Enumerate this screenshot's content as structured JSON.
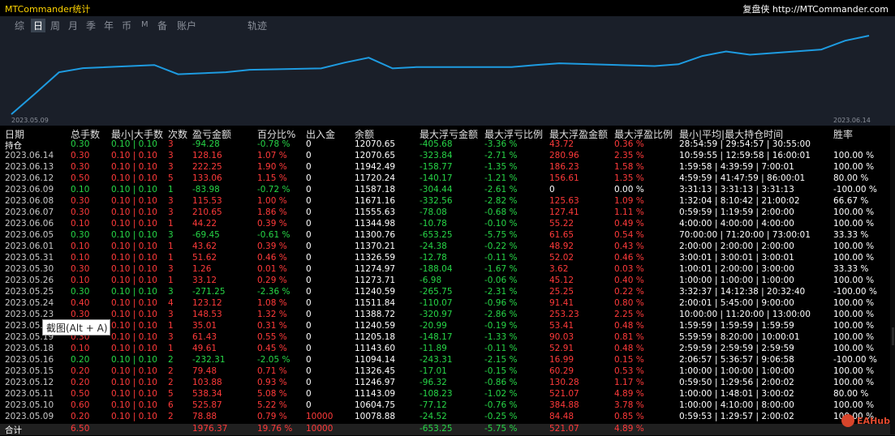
{
  "app": {
    "title": "MTCommander统计",
    "brand": "复盘侠 http://MTCommander.com"
  },
  "tabs": [
    {
      "label": "综",
      "active": false
    },
    {
      "label": "日",
      "active": true
    },
    {
      "label": "周",
      "active": false
    },
    {
      "label": "月",
      "active": false
    },
    {
      "label": "季",
      "active": false
    },
    {
      "label": "年",
      "active": false
    },
    {
      "label": "币",
      "active": false
    },
    {
      "label": "M",
      "active": false
    },
    {
      "label": "备",
      "active": false
    },
    {
      "label": "账户",
      "active": false
    },
    {
      "label": "轨迹",
      "active": false
    }
  ],
  "chart": {
    "start_date": "2023.05.09",
    "end_date": "2023.06.14",
    "line_color": "#1e9be0",
    "dates": [
      "2023.05.09",
      "2023.05.10",
      "2023.05.11",
      "2023.05.12",
      "2023.05.15",
      "2023.05.16",
      "2023.05.18",
      "2023.05.19",
      "2023.05.22",
      "2023.05.23",
      "2023.05.24",
      "2023.05.25",
      "2023.05.26",
      "2023.05.30",
      "2023.05.31",
      "2023.06.01",
      "2023.06.05",
      "2023.06.06",
      "2023.06.07",
      "2023.06.08",
      "2023.06.09",
      "2023.06.12",
      "2023.06.13",
      "2023.06.14"
    ],
    "values": [
      10078.88,
      10604.75,
      11143.09,
      11246.97,
      11326.45,
      11094.14,
      11143.6,
      11205.18,
      11240.59,
      11388.72,
      11511.84,
      11240.59,
      11273.71,
      11274.97,
      11326.59,
      11370.21,
      11300.76,
      11344.98,
      11555.63,
      11671.16,
      11587.18,
      11720.24,
      11942.49,
      12070.65
    ]
  },
  "table": {
    "headers": [
      "日期",
      "总手数",
      "最小|大手数",
      "次数",
      "盈亏金额",
      "百分比%",
      "出入金",
      "余额",
      "最大浮亏金额",
      "最大浮亏比例",
      "最大浮盈金额",
      "最大浮盈比例",
      "最小|平均|最大持仓时间",
      "胜率"
    ],
    "rows": [
      {
        "c": [
          "持仓",
          "0.30",
          "0.10 | 0.10",
          "3",
          "-94.28",
          "-0.78 %",
          "0",
          "12070.65",
          "-405.68",
          "-3.36 %",
          "43.72",
          "0.36 %",
          "28:54:59 | 29:54:57 | 30:55:00",
          ""
        ],
        "col": [
          "w",
          "g",
          "g",
          "r",
          "g",
          "g",
          "w",
          "w",
          "g",
          "g",
          "r",
          "r",
          "w",
          "w"
        ]
      },
      {
        "c": [
          "2023.06.14",
          "0.30",
          "0.10 | 0.10",
          "3",
          "128.16",
          "1.07 %",
          "0",
          "12070.65",
          "-323.84",
          "-2.71 %",
          "280.96",
          "2.35 %",
          "10:59:55 | 12:59:58 | 16:00:01",
          "100.00 %"
        ],
        "col": [
          "n",
          "r",
          "r",
          "r",
          "r",
          "r",
          "w",
          "w",
          "g",
          "g",
          "r",
          "r",
          "w",
          "w"
        ]
      },
      {
        "c": [
          "2023.06.13",
          "0.30",
          "0.10 | 0.10",
          "3",
          "222.25",
          "1.90 %",
          "0",
          "11942.49",
          "-158.77",
          "-1.35 %",
          "186.23",
          "1.58 %",
          "1:59:58 | 4:39:59 | 7:00:01",
          "100.00 %"
        ],
        "col": [
          "n",
          "r",
          "r",
          "r",
          "r",
          "r",
          "w",
          "w",
          "g",
          "g",
          "r",
          "r",
          "w",
          "w"
        ]
      },
      {
        "c": [
          "2023.06.12",
          "0.50",
          "0.10 | 0.10",
          "5",
          "133.06",
          "1.15 %",
          "0",
          "11720.24",
          "-140.17",
          "-1.21 %",
          "156.61",
          "1.35 %",
          "4:59:59 | 41:47:59 | 86:00:01",
          "80.00 %"
        ],
        "col": [
          "n",
          "r",
          "r",
          "r",
          "r",
          "r",
          "w",
          "w",
          "g",
          "g",
          "r",
          "r",
          "w",
          "w"
        ]
      },
      {
        "c": [
          "2023.06.09",
          "0.10",
          "0.10 | 0.10",
          "1",
          "-83.98",
          "-0.72 %",
          "0",
          "11587.18",
          "-304.44",
          "-2.61 %",
          "0",
          "0.00 %",
          "3:31:13 | 3:31:13 | 3:31:13",
          "-100.00 %"
        ],
        "col": [
          "n",
          "g",
          "g",
          "g",
          "g",
          "g",
          "w",
          "w",
          "g",
          "g",
          "w",
          "w",
          "w",
          "w"
        ]
      },
      {
        "c": [
          "2023.06.08",
          "0.30",
          "0.10 | 0.10",
          "3",
          "115.53",
          "1.00 %",
          "0",
          "11671.16",
          "-332.56",
          "-2.82 %",
          "125.63",
          "1.09 %",
          "1:32:04 | 8:10:42 | 21:00:02",
          "66.67 %"
        ],
        "col": [
          "n",
          "r",
          "r",
          "r",
          "r",
          "r",
          "w",
          "w",
          "g",
          "g",
          "r",
          "r",
          "w",
          "w"
        ]
      },
      {
        "c": [
          "2023.06.07",
          "0.30",
          "0.10 | 0.10",
          "3",
          "210.65",
          "1.86 %",
          "0",
          "11555.63",
          "-78.08",
          "-0.68 %",
          "127.41",
          "1.11 %",
          "0:59:59 | 1:19:59 | 2:00:00",
          "100.00 %"
        ],
        "col": [
          "n",
          "r",
          "r",
          "r",
          "r",
          "r",
          "w",
          "w",
          "g",
          "g",
          "r",
          "r",
          "w",
          "w"
        ]
      },
      {
        "c": [
          "2023.06.06",
          "0.10",
          "0.10 | 0.10",
          "1",
          "44.22",
          "0.39 %",
          "0",
          "11344.98",
          "-10.78",
          "-0.10 %",
          "55.22",
          "0.49 %",
          "4:00:00 | 4:00:00 | 4:00:00",
          "100.00 %"
        ],
        "col": [
          "n",
          "r",
          "r",
          "r",
          "r",
          "r",
          "w",
          "w",
          "g",
          "g",
          "r",
          "r",
          "w",
          "w"
        ]
      },
      {
        "c": [
          "2023.06.05",
          "0.30",
          "0.10 | 0.10",
          "3",
          "-69.45",
          "-0.61 %",
          "0",
          "11300.76",
          "-653.25",
          "-5.75 %",
          "61.65",
          "0.54 %",
          "70:00:00 | 71:20:00 | 73:00:01",
          "33.33 %"
        ],
        "col": [
          "n",
          "g",
          "g",
          "g",
          "g",
          "g",
          "w",
          "w",
          "g",
          "g",
          "r",
          "r",
          "w",
          "w"
        ]
      },
      {
        "c": [
          "2023.06.01",
          "0.10",
          "0.10 | 0.10",
          "1",
          "43.62",
          "0.39 %",
          "0",
          "11370.21",
          "-24.38",
          "-0.22 %",
          "48.92",
          "0.43 %",
          "2:00:00 | 2:00:00 | 2:00:00",
          "100.00 %"
        ],
        "col": [
          "n",
          "r",
          "r",
          "r",
          "r",
          "r",
          "w",
          "w",
          "g",
          "g",
          "r",
          "r",
          "w",
          "w"
        ]
      },
      {
        "c": [
          "2023.05.31",
          "0.10",
          "0.10 | 0.10",
          "1",
          "51.62",
          "0.46 %",
          "0",
          "11326.59",
          "-12.78",
          "-0.11 %",
          "52.02",
          "0.46 %",
          "3:00:01 | 3:00:01 | 3:00:01",
          "100.00 %"
        ],
        "col": [
          "n",
          "r",
          "r",
          "r",
          "r",
          "r",
          "w",
          "w",
          "g",
          "g",
          "r",
          "r",
          "w",
          "w"
        ]
      },
      {
        "c": [
          "2023.05.30",
          "0.30",
          "0.10 | 0.10",
          "3",
          "1.26",
          "0.01 %",
          "0",
          "11274.97",
          "-188.04",
          "-1.67 %",
          "3.62",
          "0.03 %",
          "1:00:01 | 2:00:00 | 3:00:00",
          "33.33 %"
        ],
        "col": [
          "n",
          "r",
          "r",
          "r",
          "r",
          "r",
          "w",
          "w",
          "g",
          "g",
          "r",
          "r",
          "w",
          "w"
        ]
      },
      {
        "c": [
          "2023.05.26",
          "0.10",
          "0.10 | 0.10",
          "1",
          "33.12",
          "0.29 %",
          "0",
          "11273.71",
          "-6.98",
          "-0.06 %",
          "45.12",
          "0.40 %",
          "1:00:00 | 1:00:00 | 1:00:00",
          "100.00 %"
        ],
        "col": [
          "n",
          "r",
          "r",
          "r",
          "r",
          "r",
          "w",
          "w",
          "g",
          "g",
          "r",
          "r",
          "w",
          "w"
        ]
      },
      {
        "c": [
          "2023.05.25",
          "0.30",
          "0.10 | 0.10",
          "3",
          "-271.25",
          "-2.36 %",
          "0",
          "11240.59",
          "-265.75",
          "-2.31 %",
          "25.25",
          "0.22 %",
          "3:32:37 | 14:12:38 | 20:32:40",
          "-100.00 %"
        ],
        "col": [
          "n",
          "g",
          "g",
          "g",
          "g",
          "g",
          "w",
          "w",
          "g",
          "g",
          "r",
          "r",
          "w",
          "w"
        ]
      },
      {
        "c": [
          "2023.05.24",
          "0.40",
          "0.10 | 0.10",
          "4",
          "123.12",
          "1.08 %",
          "0",
          "11511.84",
          "-110.07",
          "-0.96 %",
          "91.41",
          "0.80 %",
          "2:00:01 | 5:45:00 | 9:00:00",
          "100.00 %"
        ],
        "col": [
          "n",
          "r",
          "r",
          "r",
          "r",
          "r",
          "w",
          "w",
          "g",
          "g",
          "r",
          "r",
          "w",
          "w"
        ]
      },
      {
        "c": [
          "2023.05.23",
          "0.30",
          "0.10 | 0.10",
          "3",
          "148.53",
          "1.32 %",
          "0",
          "11388.72",
          "-320.97",
          "-2.86 %",
          "253.23",
          "2.25 %",
          "10:00:00 | 11:20:00 | 13:00:00",
          "100.00 %"
        ],
        "col": [
          "n",
          "r",
          "r",
          "r",
          "r",
          "r",
          "w",
          "w",
          "g",
          "g",
          "r",
          "r",
          "w",
          "w"
        ]
      },
      {
        "c": [
          "2023.05.22",
          "0.10",
          "0.10 | 0.10",
          "1",
          "35.01",
          "0.31 %",
          "0",
          "11240.59",
          "-20.99",
          "-0.19 %",
          "53.41",
          "0.48 %",
          "1:59:59 | 1:59:59 | 1:59:59",
          "100.00 %"
        ],
        "col": [
          "n",
          "r",
          "r",
          "r",
          "r",
          "r",
          "w",
          "w",
          "g",
          "g",
          "r",
          "r",
          "w",
          "w"
        ]
      },
      {
        "c": [
          "2023.05.19",
          "0.30",
          "0.10 | 0.10",
          "3",
          "61.43",
          "0.55 %",
          "0",
          "11205.18",
          "-148.17",
          "-1.33 %",
          "90.03",
          "0.81 %",
          "5:59:59 | 8:20:00 | 10:00:01",
          "100.00 %"
        ],
        "col": [
          "n",
          "r",
          "r",
          "r",
          "r",
          "r",
          "w",
          "w",
          "g",
          "g",
          "r",
          "r",
          "w",
          "w"
        ]
      },
      {
        "c": [
          "2023.05.18",
          "0.10",
          "0.10 | 0.10",
          "1",
          "49.61",
          "0.45 %",
          "0",
          "11143.60",
          "-11.89",
          "-0.11 %",
          "52.91",
          "0.48 %",
          "2:59:59 | 2:59:59 | 2:59:59",
          "100.00 %"
        ],
        "col": [
          "n",
          "r",
          "r",
          "r",
          "r",
          "r",
          "w",
          "w",
          "g",
          "g",
          "r",
          "r",
          "w",
          "w"
        ]
      },
      {
        "c": [
          "2023.05.16",
          "0.20",
          "0.10 | 0.10",
          "2",
          "-232.31",
          "-2.05 %",
          "0",
          "11094.14",
          "-243.31",
          "-2.15 %",
          "16.99",
          "0.15 %",
          "2:06:57 | 5:36:57 | 9:06:58",
          "-100.00 %"
        ],
        "col": [
          "n",
          "g",
          "g",
          "g",
          "g",
          "g",
          "w",
          "w",
          "g",
          "g",
          "r",
          "r",
          "w",
          "w"
        ]
      },
      {
        "c": [
          "2023.05.15",
          "0.20",
          "0.10 | 0.10",
          "2",
          "79.48",
          "0.71 %",
          "0",
          "11326.45",
          "-17.01",
          "-0.15 %",
          "60.29",
          "0.53 %",
          "1:00:00 | 1:00:00 | 1:00:00",
          "100.00 %"
        ],
        "col": [
          "n",
          "r",
          "r",
          "r",
          "r",
          "r",
          "w",
          "w",
          "g",
          "g",
          "r",
          "r",
          "w",
          "w"
        ]
      },
      {
        "c": [
          "2023.05.12",
          "0.20",
          "0.10 | 0.10",
          "2",
          "103.88",
          "0.93 %",
          "0",
          "11246.97",
          "-96.32",
          "-0.86 %",
          "130.28",
          "1.17 %",
          "0:59:50 | 1:29:56 | 2:00:02",
          "100.00 %"
        ],
        "col": [
          "n",
          "r",
          "r",
          "r",
          "r",
          "r",
          "w",
          "w",
          "g",
          "g",
          "r",
          "r",
          "w",
          "w"
        ]
      },
      {
        "c": [
          "2023.05.11",
          "0.50",
          "0.10 | 0.10",
          "5",
          "538.34",
          "5.08 %",
          "0",
          "11143.09",
          "-108.23",
          "-1.02 %",
          "521.07",
          "4.89 %",
          "1:00:00 | 1:48:01 | 3:00:02",
          "80.00 %"
        ],
        "col": [
          "n",
          "r",
          "r",
          "r",
          "r",
          "r",
          "w",
          "w",
          "g",
          "g",
          "r",
          "r",
          "w",
          "w"
        ]
      },
      {
        "c": [
          "2023.05.10",
          "0.60",
          "0.10 | 0.10",
          "6",
          "525.87",
          "5.22 %",
          "0",
          "10604.75",
          "-77.12",
          "-0.76 %",
          "384.88",
          "3.78 %",
          "1:00:00 | 4:10:00 | 8:00:00",
          "100.00 %"
        ],
        "col": [
          "n",
          "r",
          "r",
          "r",
          "r",
          "r",
          "w",
          "w",
          "g",
          "g",
          "r",
          "r",
          "w",
          "w"
        ]
      },
      {
        "c": [
          "2023.05.09",
          "0.20",
          "0.10 | 0.10",
          "2",
          "78.88",
          "0.79 %",
          "10000",
          "10078.88",
          "-24.52",
          "-0.25 %",
          "84.48",
          "0.85 %",
          "0:59:53 | 1:29:57 | 2:00:02",
          "100.00 %"
        ],
        "col": [
          "n",
          "r",
          "r",
          "r",
          "r",
          "r",
          "r",
          "w",
          "g",
          "g",
          "r",
          "r",
          "w",
          "w"
        ]
      }
    ],
    "total": {
      "c": [
        "合计",
        "6.50",
        "",
        "",
        "1976.37",
        "19.76 %",
        "10000",
        "",
        "-653.25",
        "-5.75 %",
        "521.07",
        "4.89 %",
        "",
        ""
      ],
      "col": [
        "w",
        "r",
        "r",
        "r",
        "r",
        "r",
        "r",
        "w",
        "g",
        "g",
        "r",
        "r",
        "w",
        "w"
      ]
    }
  },
  "tooltip": {
    "text": "截图(Alt + A)"
  },
  "watermark": {
    "text": "EAHub"
  }
}
